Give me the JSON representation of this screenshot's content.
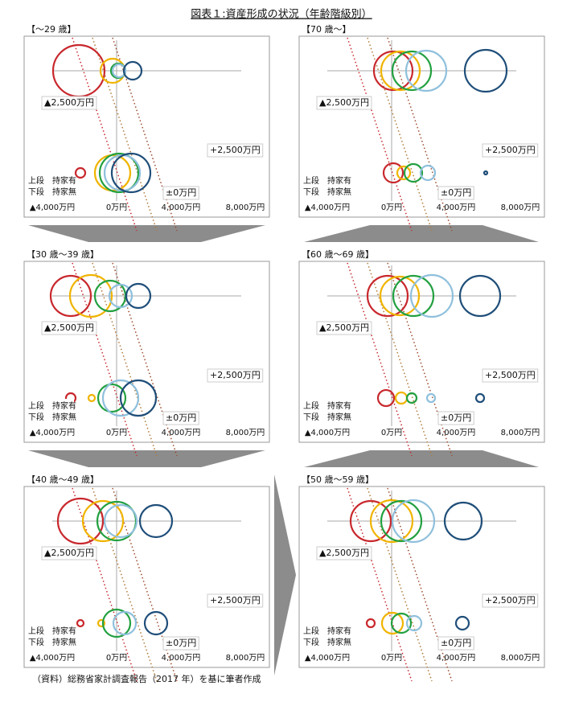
{
  "title": "図表１:資産形成の状況（年齢階級別）",
  "source": "（資料）総務省家計調査報告（2017 年）を基に筆者作成",
  "chart_data": [
    {
      "type": "bubble",
      "title": "【～29 歳】",
      "categories": [
        "上段　持家有",
        "下段　持家無"
      ],
      "xlim": [
        -5750,
        9500
      ],
      "xticks": [
        {
          "value": -4000,
          "label": "▲4,000万円"
        },
        {
          "value": 0,
          "label": "0万円"
        },
        {
          "value": 4000,
          "label": "4,000万円"
        },
        {
          "value": 8000,
          "label": "8,000万円"
        }
      ],
      "annotations": [
        {
          "value": -2500,
          "label": "▲2,500万円"
        },
        {
          "value": 0,
          "label": "±0万円"
        },
        {
          "value": 2500,
          "label": "+2,500万円"
        }
      ],
      "series": [
        {
          "color": "#c8282d",
          "values": [
            -2350,
            -2250
          ],
          "sizes": [
            1600,
            300
          ]
        },
        {
          "color": "#f0b400",
          "values": [
            -250,
            -250
          ],
          "sizes": [
            750,
            1100
          ]
        },
        {
          "color": "#22a040",
          "values": [
            100,
            150
          ],
          "sizes": [
            450,
            1200
          ]
        },
        {
          "color": "#8fc0dc",
          "values": [
            150,
            350
          ],
          "sizes": [
            400,
            1100
          ]
        },
        {
          "color": "#1f4e79",
          "values": [
            1000,
            900
          ],
          "sizes": [
            550,
            1200
          ]
        }
      ]
    },
    {
      "type": "bubble",
      "title": "【70 歳～】",
      "categories": [
        "上段　持家有",
        "下段　持家無"
      ],
      "xlim": [
        -5750,
        9500
      ],
      "xticks": [
        {
          "value": -4000,
          "label": "▲4,000万円"
        },
        {
          "value": 0,
          "label": "0万円"
        },
        {
          "value": 4000,
          "label": "4,000万円"
        },
        {
          "value": 8000,
          "label": "8,000万円"
        }
      ],
      "annotations": [
        {
          "value": -2500,
          "label": "▲2,500万円"
        },
        {
          "value": 0,
          "label": "±0万円"
        },
        {
          "value": 2500,
          "label": "+2,500万円"
        }
      ],
      "series": [
        {
          "color": "#c8282d",
          "values": [
            100,
            100
          ],
          "sizes": [
            1200,
            600
          ]
        },
        {
          "color": "#f0b400",
          "values": [
            550,
            750
          ],
          "sizes": [
            1200,
            400
          ]
        },
        {
          "color": "#22a040",
          "values": [
            1250,
            1350
          ],
          "sizes": [
            1200,
            550
          ]
        },
        {
          "color": "#8fc0dc",
          "values": [
            2150,
            2250
          ],
          "sizes": [
            1250,
            450
          ]
        },
        {
          "color": "#1f4e79",
          "values": [
            5850,
            5850
          ],
          "sizes": [
            1300,
            100
          ]
        }
      ]
    },
    {
      "type": "bubble",
      "title": "【30 歳～39 歳】",
      "categories": [
        "上段　持家有",
        "下段　持家無"
      ],
      "xlim": [
        -5750,
        9500
      ],
      "xticks": [
        {
          "value": -4000,
          "label": "▲4,000万円"
        },
        {
          "value": 0,
          "label": "0万円"
        },
        {
          "value": 4000,
          "label": "4,000万円"
        },
        {
          "value": 8000,
          "label": "8,000万円"
        }
      ],
      "annotations": [
        {
          "value": -2500,
          "label": "▲2,500万円"
        },
        {
          "value": 0,
          "label": "±0万円"
        },
        {
          "value": 2500,
          "label": "+2,500万円"
        }
      ],
      "series": [
        {
          "color": "#c8282d",
          "values": [
            -2850,
            -2850
          ],
          "sizes": [
            1250,
            300
          ]
        },
        {
          "color": "#f0b400",
          "values": [
            -1600,
            -1550
          ],
          "sizes": [
            1300,
            200
          ]
        },
        {
          "color": "#22a040",
          "values": [
            -400,
            -300
          ],
          "sizes": [
            950,
            850
          ]
        },
        {
          "color": "#8fc0dc",
          "values": [
            250,
            250
          ],
          "sizes": [
            700,
            1100
          ]
        },
        {
          "color": "#1f4e79",
          "values": [
            1350,
            1350
          ],
          "sizes": [
            750,
            1100
          ]
        }
      ]
    },
    {
      "type": "bubble",
      "title": "【60 歳～69 歳】",
      "categories": [
        "上段　持家有",
        "下段　持家無"
      ],
      "xlim": [
        -5750,
        9500
      ],
      "xticks": [
        {
          "value": -4000,
          "label": "▲4,000万円"
        },
        {
          "value": 0,
          "label": "0万円"
        },
        {
          "value": 4000,
          "label": "4,000万円"
        },
        {
          "value": 8000,
          "label": "8,000万円"
        }
      ],
      "annotations": [
        {
          "value": -2500,
          "label": "▲2,500万円"
        },
        {
          "value": 0,
          "label": "±0万円"
        },
        {
          "value": 2500,
          "label": "+2,500万円"
        }
      ],
      "series": [
        {
          "color": "#c8282d",
          "values": [
            -250,
            -350
          ],
          "sizes": [
            1250,
            500
          ]
        },
        {
          "color": "#f0b400",
          "values": [
            500,
            600
          ],
          "sizes": [
            1200,
            350
          ]
        },
        {
          "color": "#22a040",
          "values": [
            1350,
            1250
          ],
          "sizes": [
            1250,
            300
          ]
        },
        {
          "color": "#8fc0dc",
          "values": [
            2500,
            2450
          ],
          "sizes": [
            1300,
            250
          ]
        },
        {
          "color": "#1f4e79",
          "values": [
            5500,
            5500
          ],
          "sizes": [
            1250,
            250
          ]
        }
      ]
    },
    {
      "type": "bubble",
      "title": "【40 歳～49 歳】",
      "categories": [
        "上段　持家有",
        "下段　持家無"
      ],
      "xlim": [
        -5750,
        9500
      ],
      "xticks": [
        {
          "value": -4000,
          "label": "▲4,000万円"
        },
        {
          "value": 0,
          "label": "0万円"
        },
        {
          "value": 4000,
          "label": "4,000万円"
        },
        {
          "value": 8000,
          "label": "8,000万円"
        }
      ],
      "annotations": [
        {
          "value": -2500,
          "label": "▲2,500万円"
        },
        {
          "value": 0,
          "label": "±0万円"
        },
        {
          "value": 2500,
          "label": "+2,500万円"
        }
      ],
      "series": [
        {
          "color": "#c8282d",
          "values": [
            -2250,
            -2250
          ],
          "sizes": [
            1400,
            200
          ]
        },
        {
          "color": "#f0b400",
          "values": [
            -850,
            -950
          ],
          "sizes": [
            1250,
            200
          ]
        },
        {
          "color": "#22a040",
          "values": [
            0,
            0
          ],
          "sizes": [
            1200,
            850
          ]
        },
        {
          "color": "#8fc0dc",
          "values": [
            250,
            500
          ],
          "sizes": [
            1000,
            700
          ]
        },
        {
          "color": "#1f4e79",
          "values": [
            2450,
            2450
          ],
          "sizes": [
            1000,
            700
          ]
        }
      ]
    },
    {
      "type": "bubble",
      "title": "【50 歳～59 歳】",
      "categories": [
        "上段　持家有",
        "下段　持家無"
      ],
      "xlim": [
        -5750,
        9500
      ],
      "xticks": [
        {
          "value": -4000,
          "label": "▲4,000万円"
        },
        {
          "value": 0,
          "label": "0万円"
        },
        {
          "value": 4000,
          "label": "4,000万円"
        },
        {
          "value": 8000,
          "label": "8,000万円"
        }
      ],
      "annotations": [
        {
          "value": -2500,
          "label": "▲2,500万円"
        },
        {
          "value": 0,
          "label": "±0万円"
        },
        {
          "value": 2500,
          "label": "+2,500万円"
        }
      ],
      "series": [
        {
          "color": "#c8282d",
          "values": [
            -1300,
            -1300
          ],
          "sizes": [
            1250,
            250
          ]
        },
        {
          "color": "#f0b400",
          "values": [
            0,
            50
          ],
          "sizes": [
            1300,
            650
          ]
        },
        {
          "color": "#22a040",
          "values": [
            600,
            600
          ],
          "sizes": [
            1250,
            600
          ]
        },
        {
          "color": "#8fc0dc",
          "values": [
            1350,
            1400
          ],
          "sizes": [
            1300,
            450
          ]
        },
        {
          "color": "#1f4e79",
          "values": [
            4450,
            4400
          ],
          "sizes": [
            1150,
            400
          ]
        }
      ]
    }
  ]
}
